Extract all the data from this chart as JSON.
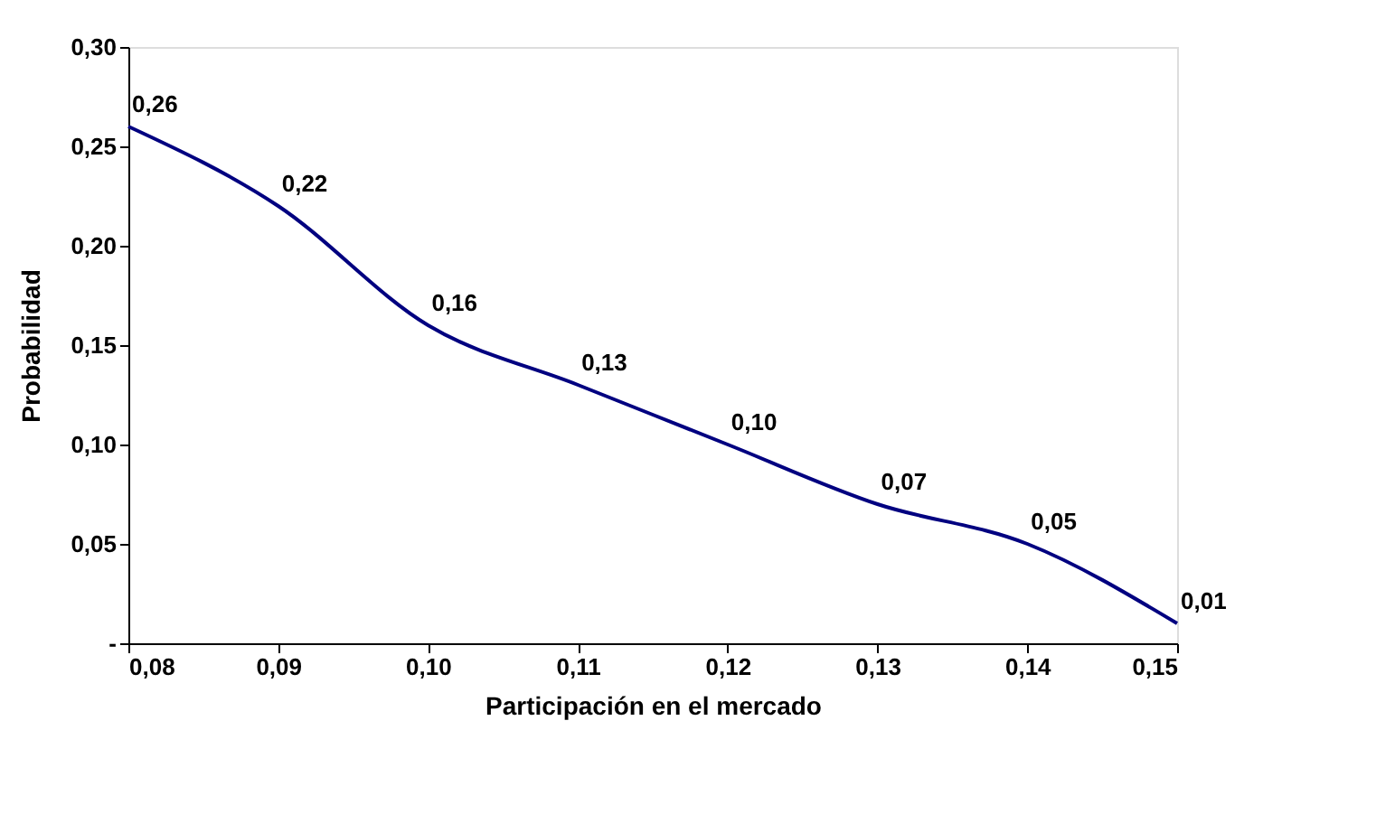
{
  "chart_data": {
    "type": "line",
    "xlabel": "Participación en el mercado",
    "ylabel": "Probabilidad",
    "x": [
      0.08,
      0.09,
      0.1,
      0.11,
      0.12,
      0.13,
      0.14,
      0.15
    ],
    "series": [
      {
        "color": "#000080",
        "values": [
          0.26,
          0.22,
          0.16,
          0.13,
          0.1,
          0.07,
          0.05,
          0.01
        ],
        "value_labels": [
          "0,26",
          "0,22",
          "0,16",
          "0,13",
          "0,10",
          "0,07",
          "0,05",
          "0,01"
        ]
      }
    ],
    "xlim": [
      0.08,
      0.15
    ],
    "ylim": [
      0,
      0.3
    ],
    "xticks": [
      {
        "value": 0.08,
        "label": "0,08"
      },
      {
        "value": 0.09,
        "label": "0,09"
      },
      {
        "value": 0.1,
        "label": "0,10"
      },
      {
        "value": 0.11,
        "label": "0,11"
      },
      {
        "value": 0.12,
        "label": "0,12"
      },
      {
        "value": 0.13,
        "label": "0,13"
      },
      {
        "value": 0.14,
        "label": "0,14"
      },
      {
        "value": 0.15,
        "label": "0,15"
      }
    ],
    "yticks": [
      {
        "value": 0,
        "label": "-"
      },
      {
        "value": 0.05,
        "label": "0,05"
      },
      {
        "value": 0.1,
        "label": "0,10"
      },
      {
        "value": 0.15,
        "label": "0,15"
      },
      {
        "value": 0.2,
        "label": "0,20"
      },
      {
        "value": 0.25,
        "label": "0,25"
      },
      {
        "value": 0.3,
        "label": "0,30"
      }
    ],
    "grid": false,
    "marker": "none",
    "line_style": "solid"
  }
}
